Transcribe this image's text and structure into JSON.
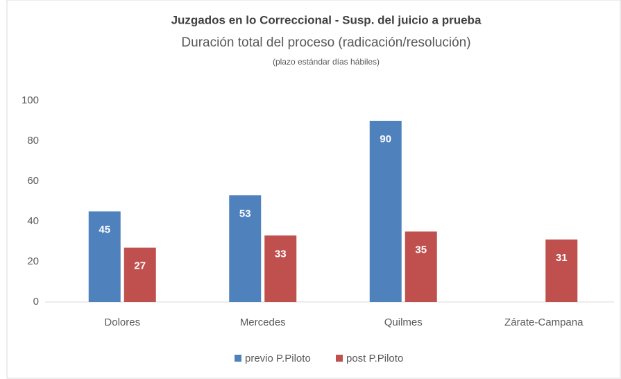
{
  "chart_data": {
    "type": "bar",
    "title": "Juzgados en lo Correccional - Susp. del juicio a prueba",
    "subtitle": "Duración total del proceso (radicación/resolución)",
    "note": "(plazo estándar días hábiles)",
    "categories": [
      "Dolores",
      "Mercedes",
      "Quilmes",
      "Zárate-Campana"
    ],
    "series": [
      {
        "name": "previo P.Piloto",
        "color": "#4f81bd",
        "values": [
          45,
          53,
          90,
          null
        ]
      },
      {
        "name": "post P.Piloto",
        "color": "#c0504d",
        "values": [
          27,
          33,
          35,
          31
        ]
      }
    ],
    "ylim": [
      0,
      100
    ],
    "yticks": [
      0,
      20,
      40,
      60,
      80,
      100
    ],
    "grid": false,
    "legend": "bottom"
  }
}
